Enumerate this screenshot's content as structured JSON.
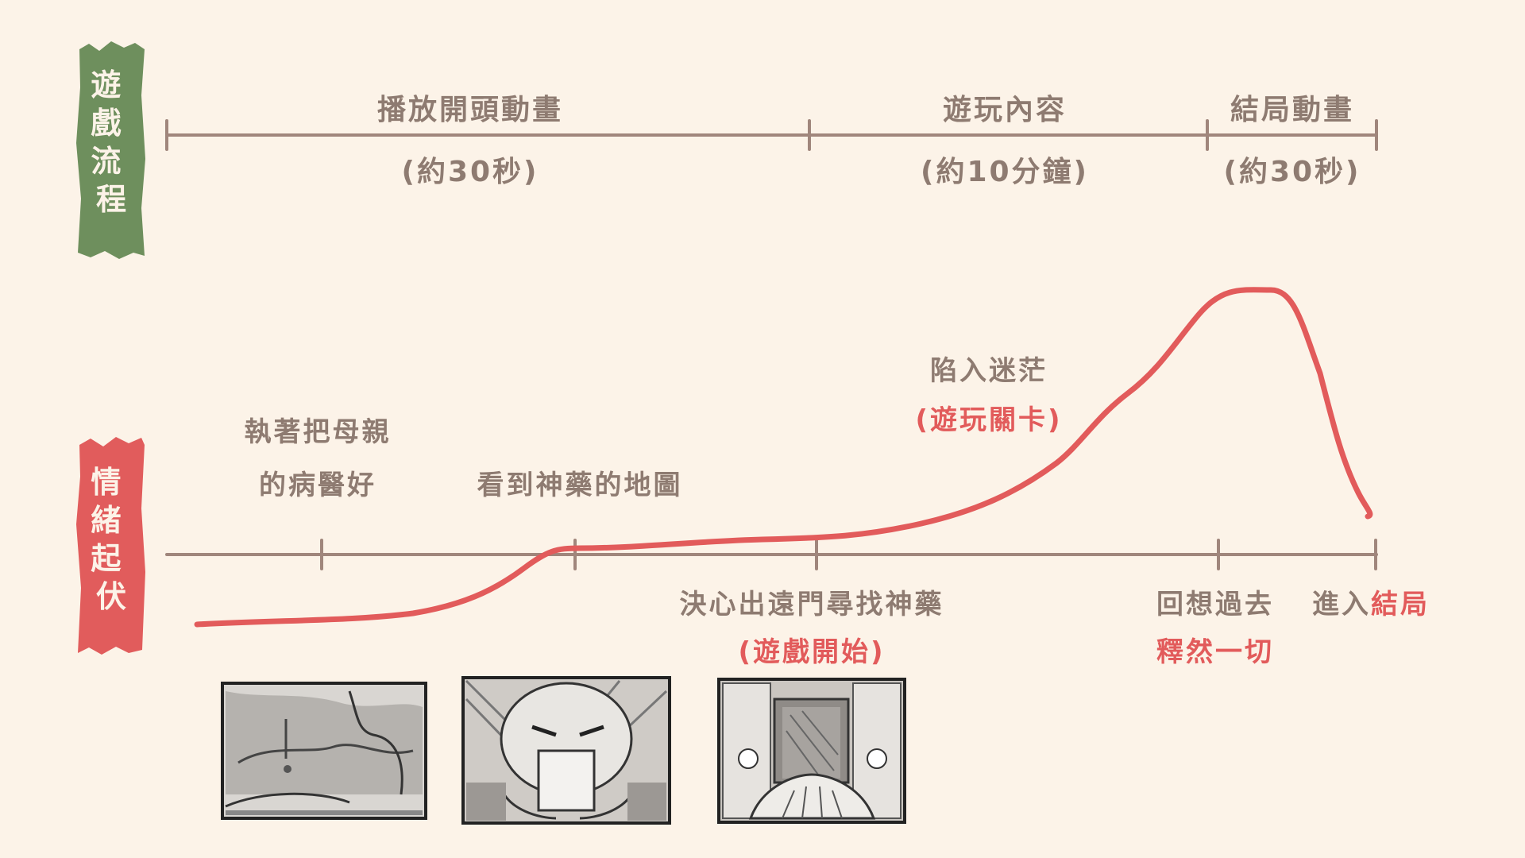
{
  "colors": {
    "background": "#fcf3e8",
    "timeline": "#a0867c",
    "text": "#8e7b71",
    "accent_red": "#e25b5b",
    "green_banner": "#6e8f5d",
    "red_banner": "#e15c5c"
  },
  "flow_banner": {
    "label": "遊戲流程"
  },
  "emotion_banner": {
    "label": "情緒起伏"
  },
  "flow": [
    {
      "title": "播放開頭動畫",
      "duration": "(約30秒)"
    },
    {
      "title": "遊玩內容",
      "duration": "(約10分鐘)"
    },
    {
      "title": "結局動畫",
      "duration": "(約30秒)"
    }
  ],
  "emotion": {
    "labels": {
      "a1": "執著把母親",
      "a2": "的病醫好",
      "b1": "看到神藥的地圖",
      "c1": "決心出遠門尋找神藥",
      "c2": "(遊戲開始)",
      "d1": "陷入迷茫",
      "d2": "(遊玩關卡)",
      "e1": "回想過去",
      "e2": "釋然一切",
      "f1": "進入",
      "f2": "結局"
    }
  },
  "storyboards": [
    {
      "subject": "bedside-sketch"
    },
    {
      "subject": "character-reading-map-sketch"
    },
    {
      "subject": "gate-departure-sketch"
    }
  ]
}
